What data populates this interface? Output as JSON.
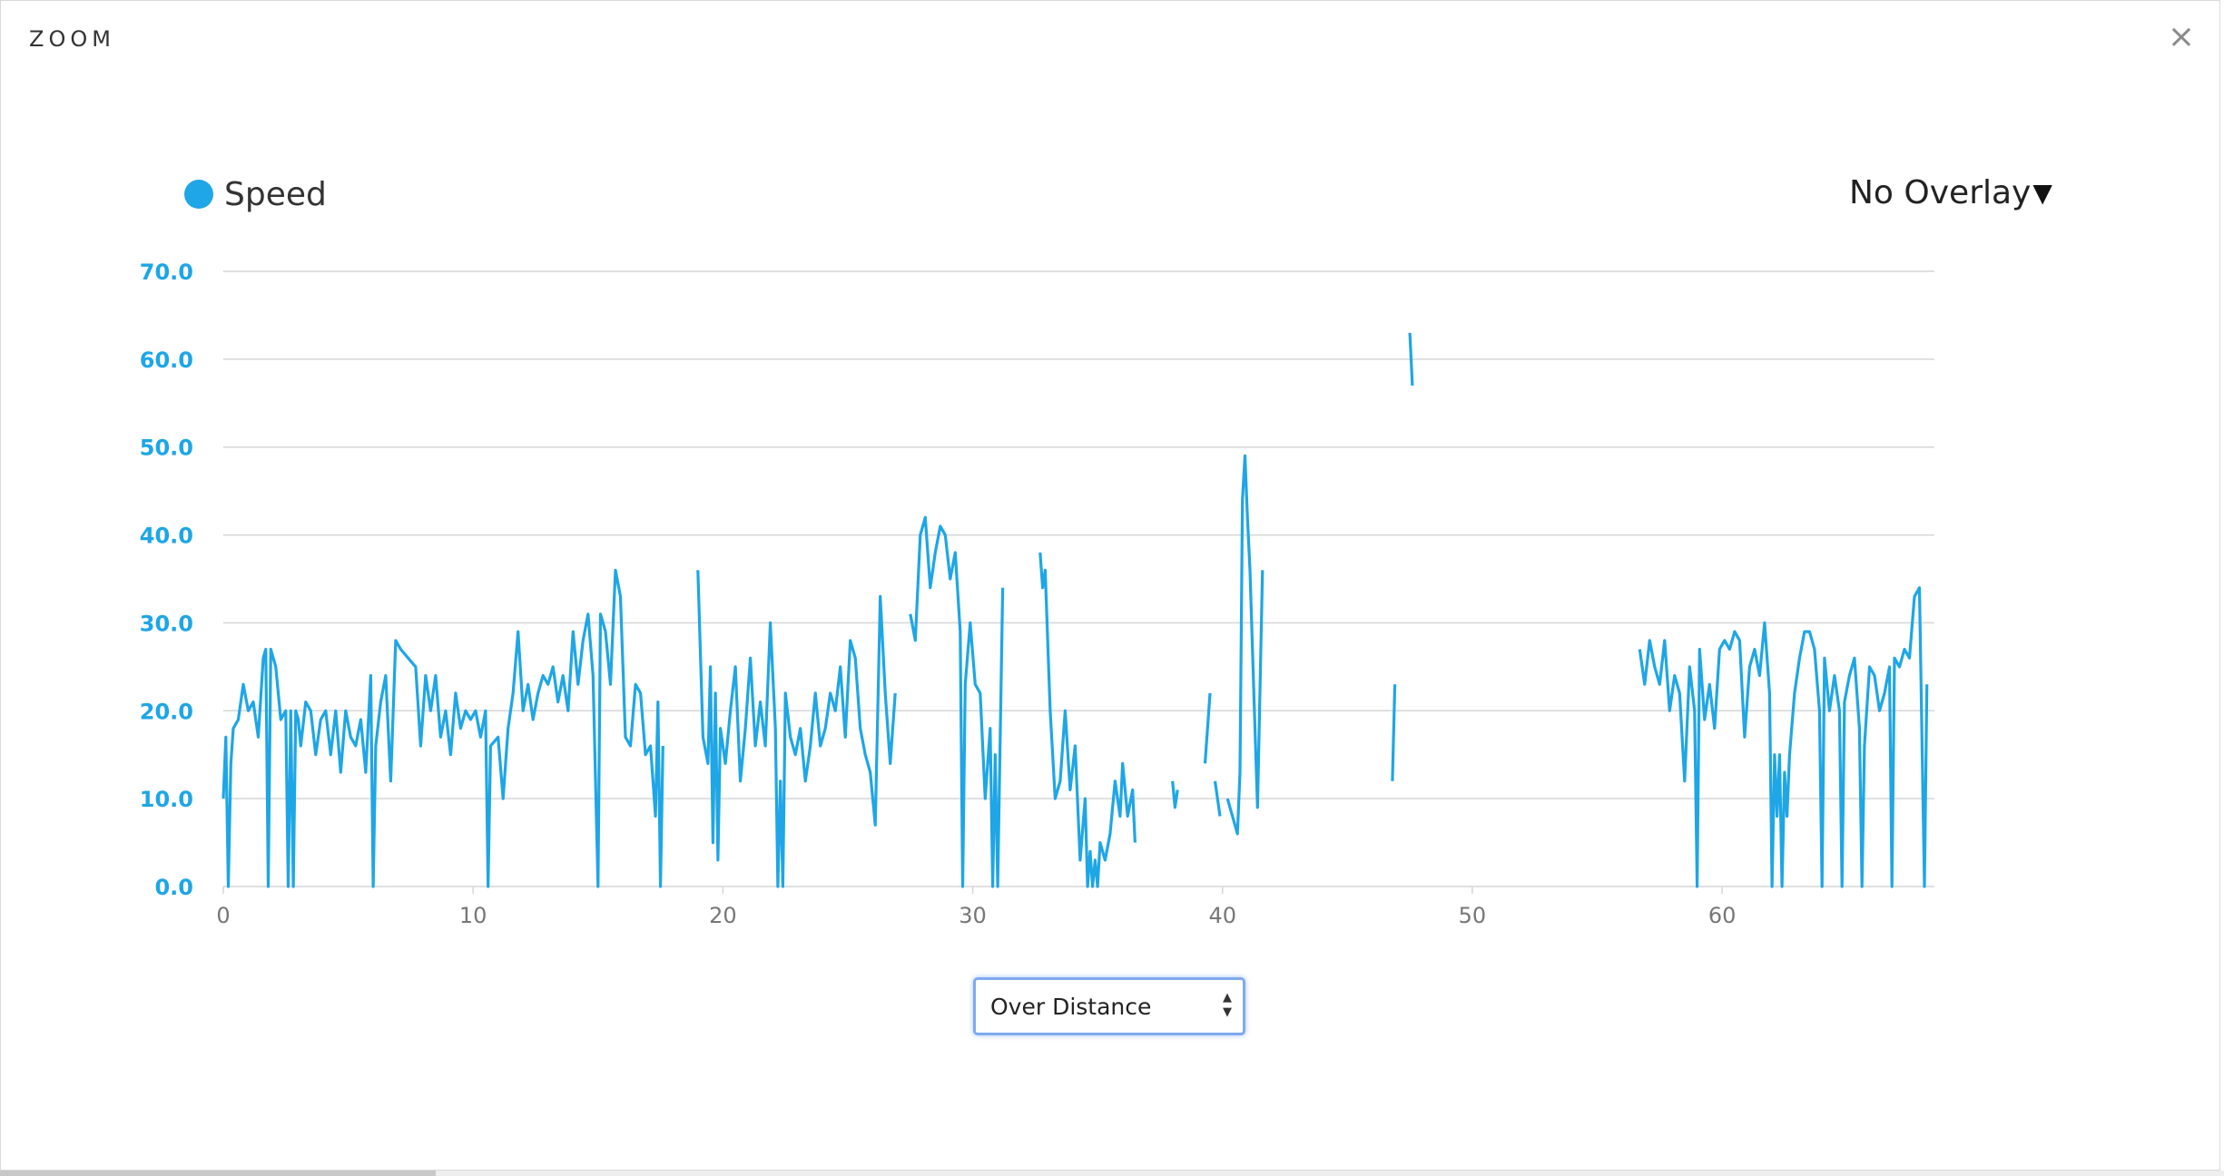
{
  "modal": {
    "title": "ZOOM",
    "close_label": "×"
  },
  "legend": {
    "label": "Speed",
    "color": "#1ea6e6"
  },
  "overlay_menu": {
    "label": "No Overlay",
    "caret": "▼"
  },
  "mode_select": {
    "value": "Over Distance",
    "arrows": "▲▼"
  },
  "chart_data": {
    "type": "line",
    "ylim": [
      0,
      70
    ],
    "xlim": [
      0,
      68.5
    ],
    "yticks": [
      "0.0",
      "10.0",
      "20.0",
      "30.0",
      "40.0",
      "50.0",
      "60.0",
      "70.0"
    ],
    "yticks_values": [
      0,
      10,
      20,
      30,
      40,
      50,
      60,
      70
    ],
    "xticks": [
      "0",
      "10",
      "20",
      "30",
      "40",
      "50",
      "60"
    ],
    "xticks_values": [
      0,
      10,
      20,
      30,
      40,
      50,
      60
    ],
    "grid": true,
    "series": [
      {
        "name": "Speed",
        "color": "#1ea6e6",
        "segments": [
          [
            [
              0,
              10
            ],
            [
              0.1,
              17
            ],
            [
              0.2,
              0
            ],
            [
              0.3,
              14
            ],
            [
              0.4,
              18
            ],
            [
              0.6,
              19
            ],
            [
              0.8,
              23
            ],
            [
              1.0,
              20
            ],
            [
              1.2,
              21
            ],
            [
              1.4,
              17
            ],
            [
              1.6,
              26
            ],
            [
              1.7,
              27
            ],
            [
              1.8,
              0
            ],
            [
              1.9,
              27
            ],
            [
              2.1,
              25
            ],
            [
              2.3,
              19
            ],
            [
              2.5,
              20
            ],
            [
              2.6,
              0
            ],
            [
              2.7,
              20
            ],
            [
              2.8,
              0
            ],
            [
              2.9,
              20
            ],
            [
              3.0,
              19
            ],
            [
              3.1,
              16
            ],
            [
              3.3,
              21
            ],
            [
              3.5,
              20
            ],
            [
              3.7,
              15
            ],
            [
              3.9,
              19
            ],
            [
              4.1,
              20
            ],
            [
              4.3,
              15
            ],
            [
              4.5,
              20
            ],
            [
              4.7,
              13
            ],
            [
              4.9,
              20
            ],
            [
              5.1,
              17
            ],
            [
              5.3,
              16
            ],
            [
              5.5,
              19
            ],
            [
              5.7,
              13
            ],
            [
              5.9,
              24
            ],
            [
              6.0,
              0
            ],
            [
              6.1,
              16
            ],
            [
              6.3,
              21
            ],
            [
              6.5,
              24
            ],
            [
              6.7,
              12
            ],
            [
              6.9,
              28
            ],
            [
              7.1,
              27
            ],
            [
              7.4,
              26
            ],
            [
              7.7,
              25
            ],
            [
              7.9,
              16
            ],
            [
              8.1,
              24
            ],
            [
              8.3,
              20
            ],
            [
              8.5,
              24
            ],
            [
              8.7,
              17
            ],
            [
              8.9,
              20
            ],
            [
              9.1,
              15
            ],
            [
              9.3,
              22
            ],
            [
              9.5,
              18
            ],
            [
              9.7,
              20
            ],
            [
              9.9,
              19
            ],
            [
              10.1,
              20
            ],
            [
              10.3,
              17
            ],
            [
              10.5,
              20
            ],
            [
              10.6,
              0
            ],
            [
              10.7,
              16
            ],
            [
              11.0,
              17
            ],
            [
              11.2,
              10
            ],
            [
              11.4,
              18
            ],
            [
              11.6,
              22
            ],
            [
              11.8,
              29
            ],
            [
              12.0,
              20
            ],
            [
              12.2,
              23
            ],
            [
              12.4,
              19
            ],
            [
              12.6,
              22
            ],
            [
              12.8,
              24
            ],
            [
              13.0,
              23
            ],
            [
              13.2,
              25
            ],
            [
              13.4,
              21
            ],
            [
              13.6,
              24
            ],
            [
              13.8,
              20
            ],
            [
              14.0,
              29
            ],
            [
              14.2,
              23
            ],
            [
              14.4,
              28
            ],
            [
              14.6,
              31
            ],
            [
              14.8,
              24
            ],
            [
              15.0,
              0
            ],
            [
              15.1,
              31
            ],
            [
              15.3,
              29
            ],
            [
              15.5,
              23
            ],
            [
              15.7,
              36
            ],
            [
              15.9,
              33
            ],
            [
              16.1,
              17
            ],
            [
              16.3,
              16
            ],
            [
              16.5,
              23
            ],
            [
              16.7,
              22
            ],
            [
              16.9,
              15
            ],
            [
              17.1,
              16
            ],
            [
              17.3,
              8
            ],
            [
              17.4,
              21
            ],
            [
              17.5,
              0
            ],
            [
              17.6,
              16
            ]
          ],
          [
            [
              19.0,
              36
            ],
            [
              19.2,
              17
            ],
            [
              19.4,
              14
            ],
            [
              19.5,
              25
            ],
            [
              19.6,
              5
            ],
            [
              19.7,
              22
            ],
            [
              19.8,
              3
            ],
            [
              19.9,
              18
            ],
            [
              20.1,
              14
            ],
            [
              20.3,
              20
            ],
            [
              20.5,
              25
            ],
            [
              20.7,
              12
            ],
            [
              20.9,
              18
            ],
            [
              21.1,
              26
            ],
            [
              21.3,
              16
            ],
            [
              21.5,
              21
            ],
            [
              21.7,
              16
            ],
            [
              21.9,
              30
            ],
            [
              22.1,
              18
            ],
            [
              22.2,
              0
            ],
            [
              22.3,
              12
            ],
            [
              22.4,
              0
            ],
            [
              22.5,
              22
            ],
            [
              22.7,
              17
            ],
            [
              22.9,
              15
            ],
            [
              23.1,
              18
            ],
            [
              23.3,
              12
            ],
            [
              23.5,
              16
            ],
            [
              23.7,
              22
            ],
            [
              23.9,
              16
            ],
            [
              24.1,
              18
            ],
            [
              24.3,
              22
            ],
            [
              24.5,
              20
            ],
            [
              24.7,
              25
            ],
            [
              24.9,
              17
            ],
            [
              25.1,
              28
            ],
            [
              25.3,
              26
            ],
            [
              25.5,
              18
            ],
            [
              25.7,
              15
            ],
            [
              25.9,
              13
            ],
            [
              26.1,
              7
            ],
            [
              26.3,
              33
            ],
            [
              26.5,
              22
            ],
            [
              26.7,
              14
            ],
            [
              26.9,
              22
            ]
          ],
          [
            [
              27.5,
              31
            ],
            [
              27.7,
              28
            ],
            [
              27.9,
              40
            ],
            [
              28.1,
              42
            ],
            [
              28.3,
              34
            ],
            [
              28.5,
              38
            ],
            [
              28.7,
              41
            ],
            [
              28.9,
              40
            ],
            [
              29.1,
              35
            ],
            [
              29.3,
              38
            ],
            [
              29.5,
              29
            ],
            [
              29.6,
              0
            ],
            [
              29.7,
              23
            ],
            [
              29.9,
              30
            ],
            [
              30.1,
              23
            ],
            [
              30.3,
              22
            ],
            [
              30.5,
              10
            ],
            [
              30.7,
              18
            ],
            [
              30.8,
              0
            ],
            [
              30.9,
              15
            ],
            [
              31.0,
              0
            ],
            [
              31.2,
              34
            ]
          ],
          [
            [
              32.7,
              38
            ],
            [
              32.8,
              34
            ],
            [
              32.9,
              36
            ],
            [
              33.1,
              20
            ],
            [
              33.3,
              10
            ],
            [
              33.5,
              12
            ],
            [
              33.7,
              20
            ],
            [
              33.9,
              11
            ],
            [
              34.1,
              16
            ],
            [
              34.3,
              3
            ],
            [
              34.5,
              10
            ],
            [
              34.6,
              0
            ],
            [
              34.7,
              4
            ],
            [
              34.8,
              0
            ],
            [
              34.9,
              3
            ],
            [
              35.0,
              0
            ],
            [
              35.1,
              5
            ],
            [
              35.3,
              3
            ],
            [
              35.5,
              6
            ],
            [
              35.7,
              12
            ],
            [
              35.9,
              8
            ],
            [
              36.0,
              14
            ],
            [
              36.2,
              8
            ],
            [
              36.4,
              11
            ],
            [
              36.5,
              5
            ]
          ],
          [
            [
              38.0,
              12
            ],
            [
              38.1,
              9
            ],
            [
              38.2,
              11
            ]
          ],
          [
            [
              39.3,
              14
            ],
            [
              39.5,
              22
            ]
          ],
          [
            [
              39.7,
              12
            ],
            [
              39.9,
              8
            ]
          ],
          [
            [
              40.2,
              10
            ],
            [
              40.4,
              8
            ],
            [
              40.6,
              6
            ],
            [
              40.7,
              13
            ],
            [
              40.8,
              44
            ],
            [
              40.9,
              49
            ],
            [
              41.0,
              42
            ],
            [
              41.1,
              36
            ],
            [
              41.3,
              18
            ],
            [
              41.4,
              9
            ],
            [
              41.6,
              36
            ]
          ],
          [
            [
              46.8,
              12
            ],
            [
              46.9,
              23
            ]
          ],
          [
            [
              47.5,
              63
            ],
            [
              47.6,
              57
            ]
          ],
          [
            [
              56.7,
              27
            ],
            [
              56.9,
              23
            ],
            [
              57.1,
              28
            ],
            [
              57.3,
              25
            ],
            [
              57.5,
              23
            ],
            [
              57.7,
              28
            ],
            [
              57.9,
              20
            ],
            [
              58.1,
              24
            ],
            [
              58.3,
              22
            ],
            [
              58.5,
              12
            ],
            [
              58.7,
              25
            ],
            [
              58.9,
              20
            ],
            [
              59.0,
              0
            ],
            [
              59.1,
              27
            ],
            [
              59.3,
              19
            ],
            [
              59.5,
              23
            ],
            [
              59.7,
              18
            ],
            [
              59.9,
              27
            ],
            [
              60.1,
              28
            ],
            [
              60.3,
              27
            ],
            [
              60.5,
              29
            ],
            [
              60.7,
              28
            ],
            [
              60.9,
              17
            ],
            [
              61.1,
              25
            ],
            [
              61.3,
              27
            ],
            [
              61.5,
              24
            ],
            [
              61.7,
              30
            ],
            [
              61.9,
              22
            ],
            [
              62.0,
              0
            ],
            [
              62.1,
              15
            ],
            [
              62.2,
              8
            ],
            [
              62.3,
              15
            ],
            [
              62.4,
              0
            ],
            [
              62.5,
              13
            ],
            [
              62.6,
              8
            ],
            [
              62.7,
              15
            ],
            [
              62.9,
              22
            ],
            [
              63.1,
              26
            ],
            [
              63.3,
              29
            ],
            [
              63.5,
              29
            ],
            [
              63.7,
              27
            ],
            [
              63.9,
              20
            ],
            [
              64.0,
              0
            ],
            [
              64.1,
              26
            ],
            [
              64.3,
              20
            ],
            [
              64.5,
              24
            ],
            [
              64.7,
              20
            ],
            [
              64.8,
              0
            ],
            [
              64.9,
              21
            ],
            [
              65.1,
              24
            ],
            [
              65.3,
              26
            ],
            [
              65.5,
              18
            ],
            [
              65.6,
              0
            ],
            [
              65.7,
              16
            ],
            [
              65.9,
              25
            ],
            [
              66.1,
              24
            ],
            [
              66.3,
              20
            ],
            [
              66.5,
              22
            ],
            [
              66.7,
              25
            ],
            [
              66.8,
              0
            ],
            [
              66.9,
              26
            ],
            [
              67.1,
              25
            ],
            [
              67.3,
              27
            ],
            [
              67.5,
              26
            ],
            [
              67.7,
              33
            ],
            [
              67.9,
              34
            ],
            [
              68.1,
              0
            ],
            [
              68.2,
              23
            ]
          ]
        ]
      }
    ]
  }
}
